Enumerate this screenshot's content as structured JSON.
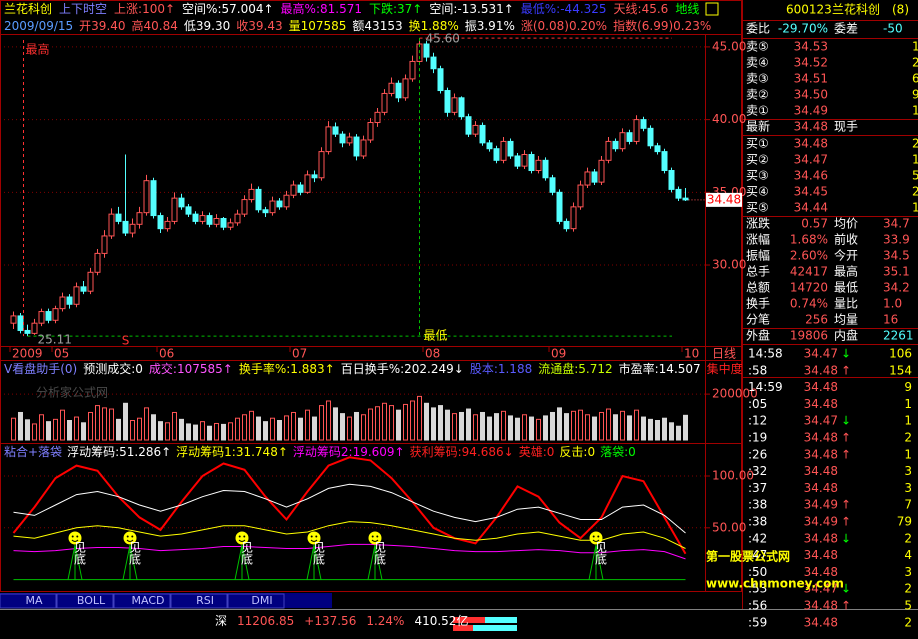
{
  "header": {
    "row1": [
      {
        "text": "兰花科创",
        "color": "#ffff00"
      },
      {
        "text": "上下时空",
        "color": "#7f7fff"
      },
      {
        "text": "上涨:100↑",
        "color": "#ff5555"
      },
      {
        "text": "空间%:57.004↑",
        "color": "#ffffff"
      },
      {
        "text": "最高%:81.571",
        "color": "#ff00ff"
      },
      {
        "text": "下跌:37↑",
        "color": "#00ff00"
      },
      {
        "text": "空间:-13.531↑",
        "color": "#ffffff"
      },
      {
        "text": "最低%:-44.325",
        "color": "#3a3aff"
      },
      {
        "text": "天线:45.6",
        "color": "#ff5555"
      },
      {
        "text": "地线",
        "color": "#00ff00"
      }
    ],
    "row2": [
      {
        "text": "2009/09/15",
        "color": "#5a9cff"
      },
      {
        "text": "开39.40",
        "color": "#ff5555"
      },
      {
        "text": "高40.84",
        "color": "#ff5555"
      },
      {
        "text": "低39.30",
        "color": "#ffffff"
      },
      {
        "text": "收39.43",
        "color": "#ff5555"
      },
      {
        "text": "量107585",
        "color": "#ffff00"
      },
      {
        "text": "额43153",
        "color": "#ffffff"
      },
      {
        "text": "换1.88%",
        "color": "#ffff00"
      },
      {
        "text": "振3.91%",
        "color": "#ffffff"
      },
      {
        "text": "涨(0.08)0.20%",
        "color": "#ff5555"
      },
      {
        "text": "指数(6.99)0.23%",
        "color": "#ff5555"
      }
    ]
  },
  "price_chart": {
    "type": "candlestick",
    "up_color": "#ff5555",
    "down_color": "#54ffff",
    "ylim": [
      24.5,
      45.75
    ],
    "yticks": [
      {
        "value": 45,
        "label": "45.00"
      },
      {
        "value": 40,
        "label": "40.00"
      },
      {
        "value": 35,
        "label": "35.00"
      },
      {
        "value": 30,
        "label": "30.00"
      }
    ],
    "grid": true,
    "period": "日线",
    "high_label": "最高",
    "low_label": "最低",
    "signal_label": "S",
    "high": {
      "value": 45.6,
      "label": "45.60"
    },
    "low": {
      "value": 25.11,
      "label": "25.11"
    },
    "last": {
      "value": 34.48,
      "label": "34.48"
    },
    "categories": [
      "2009",
      null,
      null,
      null,
      null,
      null,
      "05",
      null,
      null,
      null,
      null,
      null,
      null,
      null,
      null,
      null,
      null,
      null,
      null,
      null,
      null,
      "06",
      null,
      null,
      null,
      null,
      null,
      null,
      null,
      null,
      null,
      null,
      null,
      null,
      null,
      null,
      null,
      null,
      null,
      null,
      "07",
      null,
      null,
      null,
      null,
      null,
      null,
      null,
      null,
      null,
      null,
      null,
      null,
      null,
      null,
      null,
      null,
      null,
      null,
      "08",
      null,
      null,
      null,
      null,
      null,
      null,
      null,
      null,
      null,
      null,
      null,
      null,
      null,
      null,
      null,
      null,
      null,
      "09",
      null,
      null,
      null,
      null,
      null,
      null,
      null,
      null,
      null,
      null,
      null,
      null,
      null,
      null,
      null,
      null,
      null,
      null,
      "10"
    ],
    "candles": [
      [
        26.0,
        26.8,
        25.6,
        26.5
      ],
      [
        26.5,
        26.7,
        25.3,
        25.5
      ],
      [
        25.5,
        25.9,
        25.11,
        25.3
      ],
      [
        25.3,
        26.3,
        25.2,
        26.0
      ],
      [
        26.0,
        27.0,
        25.8,
        26.8
      ],
      [
        26.8,
        27.0,
        26.0,
        26.2
      ],
      [
        26.2,
        27.2,
        26.0,
        27.0
      ],
      [
        27.0,
        28.1,
        26.8,
        27.8
      ],
      [
        27.8,
        28.0,
        27.0,
        27.3
      ],
      [
        27.3,
        28.8,
        27.1,
        28.5
      ],
      [
        28.5,
        28.9,
        28.0,
        28.2
      ],
      [
        28.2,
        29.8,
        28.0,
        29.5
      ],
      [
        29.5,
        31.1,
        29.3,
        30.8
      ],
      [
        30.8,
        32.4,
        30.5,
        32.0
      ],
      [
        32.0,
        33.9,
        31.8,
        33.5
      ],
      [
        33.5,
        34.0,
        32.8,
        33.0
      ],
      [
        33.0,
        37.6,
        32.0,
        32.2
      ],
      [
        32.2,
        33.2,
        31.9,
        32.8
      ],
      [
        32.8,
        34.0,
        32.5,
        33.6
      ],
      [
        33.6,
        36.2,
        33.4,
        35.8
      ],
      [
        35.8,
        36.0,
        33.2,
        33.4
      ],
      [
        33.4,
        33.6,
        32.2,
        32.5
      ],
      [
        32.5,
        33.3,
        32.3,
        33.0
      ],
      [
        33.0,
        35.0,
        32.8,
        34.6
      ],
      [
        34.6,
        34.9,
        33.8,
        34.0
      ],
      [
        34.0,
        34.2,
        33.3,
        33.5
      ],
      [
        33.5,
        33.7,
        32.8,
        33.0
      ],
      [
        33.0,
        33.7,
        32.8,
        33.4
      ],
      [
        33.4,
        33.6,
        32.6,
        32.8
      ],
      [
        32.8,
        33.5,
        32.6,
        33.2
      ],
      [
        33.2,
        33.3,
        32.4,
        32.6
      ],
      [
        32.6,
        33.2,
        32.4,
        32.9
      ],
      [
        32.9,
        33.8,
        32.7,
        33.5
      ],
      [
        33.5,
        34.8,
        33.3,
        34.5
      ],
      [
        34.5,
        35.6,
        34.3,
        35.2
      ],
      [
        35.2,
        35.4,
        33.6,
        33.8
      ],
      [
        33.8,
        34.0,
        33.3,
        33.6
      ],
      [
        33.6,
        34.7,
        33.4,
        34.4
      ],
      [
        34.4,
        34.6,
        33.8,
        34.0
      ],
      [
        34.0,
        35.1,
        33.8,
        34.8
      ],
      [
        34.8,
        35.8,
        34.6,
        35.5
      ],
      [
        35.5,
        35.7,
        34.8,
        35.0
      ],
      [
        35.0,
        36.5,
        34.9,
        36.2
      ],
      [
        36.2,
        36.5,
        35.7,
        36.0
      ],
      [
        36.0,
        38.1,
        35.8,
        37.8
      ],
      [
        37.8,
        39.9,
        37.6,
        39.5
      ],
      [
        39.5,
        39.8,
        38.8,
        39.0
      ],
      [
        39.0,
        39.2,
        38.1,
        38.4
      ],
      [
        38.4,
        39.1,
        38.2,
        38.8
      ],
      [
        38.8,
        39.0,
        37.2,
        37.5
      ],
      [
        37.5,
        38.9,
        37.3,
        38.6
      ],
      [
        38.6,
        40.1,
        38.4,
        39.8
      ],
      [
        39.8,
        40.8,
        39.5,
        40.5
      ],
      [
        40.5,
        42.1,
        40.3,
        41.8
      ],
      [
        41.8,
        42.9,
        41.6,
        42.5
      ],
      [
        42.5,
        42.7,
        41.2,
        41.5
      ],
      [
        41.5,
        43.1,
        41.3,
        42.8
      ],
      [
        42.8,
        44.4,
        42.6,
        44.0
      ],
      [
        44.0,
        45.6,
        43.8,
        45.2
      ],
      [
        45.2,
        45.4,
        44.0,
        44.3
      ],
      [
        44.3,
        44.6,
        43.2,
        43.5
      ],
      [
        43.5,
        43.7,
        41.8,
        42.0
      ],
      [
        42.0,
        42.2,
        40.2,
        40.5
      ],
      [
        40.5,
        41.8,
        40.3,
        41.5
      ],
      [
        41.5,
        41.6,
        40.0,
        40.2
      ],
      [
        40.2,
        40.4,
        38.8,
        39.0
      ],
      [
        39.0,
        39.9,
        38.8,
        39.6
      ],
      [
        39.6,
        39.8,
        38.2,
        38.4
      ],
      [
        38.4,
        38.6,
        37.8,
        38.0
      ],
      [
        38.0,
        38.2,
        37.0,
        37.2
      ],
      [
        37.2,
        38.8,
        37.0,
        38.5
      ],
      [
        38.5,
        38.7,
        37.3,
        37.5
      ],
      [
        37.5,
        37.7,
        36.6,
        36.8
      ],
      [
        36.8,
        37.9,
        36.6,
        37.6
      ],
      [
        37.6,
        37.8,
        36.3,
        36.5
      ],
      [
        36.5,
        37.5,
        36.3,
        37.2
      ],
      [
        37.2,
        37.4,
        35.8,
        36.0
      ],
      [
        36.0,
        36.2,
        34.8,
        35.0
      ],
      [
        35.0,
        35.2,
        32.8,
        33.0
      ],
      [
        33.0,
        33.2,
        32.3,
        32.5
      ],
      [
        32.5,
        34.3,
        32.3,
        34.0
      ],
      [
        34.0,
        35.8,
        33.8,
        35.5
      ],
      [
        35.5,
        36.7,
        35.3,
        36.4
      ],
      [
        36.4,
        36.6,
        35.5,
        35.7
      ],
      [
        35.7,
        37.5,
        35.5,
        37.2
      ],
      [
        37.2,
        38.8,
        37.0,
        38.5
      ],
      [
        38.5,
        38.7,
        37.8,
        38.0
      ],
      [
        38.0,
        39.4,
        37.8,
        39.1
      ],
      [
        39.1,
        39.3,
        38.3,
        38.5
      ],
      [
        38.5,
        40.3,
        38.3,
        40.0
      ],
      [
        40.0,
        40.2,
        39.2,
        39.4
      ],
      [
        39.4,
        39.6,
        38.0,
        38.2
      ],
      [
        38.2,
        38.4,
        37.6,
        37.8
      ],
      [
        37.8,
        38.0,
        36.3,
        36.5
      ],
      [
        36.5,
        36.7,
        35.0,
        35.2
      ],
      [
        35.2,
        35.4,
        34.4,
        34.6
      ],
      [
        34.6,
        35.3,
        34.4,
        34.48
      ]
    ]
  },
  "volume_chart": {
    "type": "bar",
    "header": [
      {
        "text": "V看盘助手(0)",
        "color": "#7f7fff"
      },
      {
        "text": "预测成交:0",
        "color": "#ffffff"
      },
      {
        "text": "成交:107585↑",
        "color": "#ff55ff"
      },
      {
        "text": "换手率%:1.883↑",
        "color": "#ffff00"
      },
      {
        "text": "百日换手%:202.249↓",
        "color": "#ffffff"
      },
      {
        "text": "股本:1.188",
        "color": "#5a5aff"
      },
      {
        "text": "流通盘:5.712",
        "color": "#c8ff00"
      },
      {
        "text": "市盈率:14.507",
        "color": "#ffffff"
      },
      {
        "text": "集中度",
        "color": "#ff2020"
      }
    ],
    "watermark": "分析家公式网",
    "ylim": [
      0,
      340000
    ],
    "yticks": [
      200000
    ],
    "values": [
      95000,
      120000,
      88000,
      70000,
      110000,
      80000,
      90000,
      130000,
      85000,
      100000,
      75000,
      120000,
      150000,
      140000,
      135000,
      90000,
      160000,
      85000,
      95000,
      140000,
      110000,
      80000,
      75000,
      120000,
      90000,
      70000,
      65000,
      80000,
      60000,
      72000,
      68000,
      75000,
      95000,
      110000,
      125000,
      100000,
      80000,
      95000,
      85000,
      105000,
      120000,
      95000,
      130000,
      100000,
      150000,
      170000,
      140000,
      115000,
      100000,
      120000,
      110000,
      135000,
      145000,
      160000,
      150000,
      130000,
      155000,
      170000,
      190000,
      160000,
      140000,
      150000,
      130000,
      115000,
      120000,
      135000,
      110000,
      120000,
      100000,
      115000,
      125000,
      105000,
      95000,
      110000,
      100000,
      90000,
      105000,
      120000,
      140000,
      115000,
      125000,
      130000,
      110000,
      100000,
      120000,
      135000,
      110000,
      125000,
      105000,
      130000,
      100000,
      90000,
      85000,
      95000,
      75000,
      60000,
      107585
    ]
  },
  "indicator_chart": {
    "type": "line",
    "header": [
      {
        "text": "粘合+落袋",
        "color": "#7f7fff"
      },
      {
        "text": "浮动筹码:51.286↑",
        "color": "#ffffff"
      },
      {
        "text": "浮动筹码1:31.748↑",
        "color": "#ffff00"
      },
      {
        "text": "浮动筹码2:19.609↑",
        "color": "#ff00ff"
      },
      {
        "text": "获利筹码:94.686↓",
        "color": "#ff2020"
      },
      {
        "text": "英雄:0",
        "color": "#ff2020"
      },
      {
        "text": "反击:0",
        "color": "#ffff00"
      },
      {
        "text": "落袋:0",
        "color": "#00ff00"
      }
    ],
    "signal_label": "见底",
    "ylim": [
      -10,
      127
    ],
    "yticks": [
      {
        "value": 100,
        "label": "100.00"
      },
      {
        "value": 50,
        "label": "50.00"
      }
    ],
    "series": [
      {
        "color": "#ff0000",
        "values": [
          45,
          70,
          98,
          110,
          105,
          80,
          60,
          48,
          75,
          100,
          112,
          106,
          80,
          58,
          85,
          110,
          118,
          115,
          98,
          75,
          50,
          40,
          35,
          60,
          90,
          80,
          55,
          40,
          60,
          100,
          95,
          60,
          25
        ]
      },
      {
        "color": "#ffffff",
        "values": [
          65,
          62,
          72,
          82,
          85,
          80,
          72,
          66,
          72,
          80,
          86,
          85,
          78,
          70,
          78,
          88,
          92,
          90,
          84,
          75,
          66,
          60,
          56,
          60,
          68,
          70,
          64,
          58,
          58,
          70,
          72,
          62,
          45
        ]
      },
      {
        "color": "#ffff00",
        "values": [
          42,
          40,
          45,
          50,
          52,
          50,
          46,
          42,
          44,
          48,
          52,
          52,
          48,
          44,
          46,
          52,
          56,
          55,
          52,
          48,
          44,
          40,
          38,
          40,
          44,
          46,
          42,
          38,
          38,
          44,
          46,
          40,
          30
        ]
      },
      {
        "color": "#ff00ff",
        "values": [
          28,
          27,
          28,
          30,
          31,
          31,
          30,
          28,
          29,
          30,
          32,
          32,
          31,
          30,
          30,
          32,
          34,
          34,
          33,
          32,
          30,
          28,
          27,
          27,
          28,
          29,
          28,
          26,
          26,
          28,
          29,
          27,
          20
        ]
      },
      {
        "color": "#00c000",
        "values": [
          0,
          0,
          0,
          0,
          0,
          0,
          0,
          0,
          0,
          0,
          0,
          0,
          0,
          0,
          0,
          0,
          0,
          0,
          0,
          0,
          0,
          0,
          0,
          0,
          0,
          0,
          0,
          0,
          0,
          0,
          0,
          0,
          0
        ]
      }
    ]
  },
  "tabs": [
    "MA",
    "BOLL",
    "MACD",
    "RSI",
    "DMI"
  ],
  "index_bar": [
    {
      "text": "深",
      "color": "#ffffff"
    },
    {
      "text": "11206.85",
      "color": "#ff5555"
    },
    {
      "text": "+137.56",
      "color": "#ff5555"
    },
    {
      "text": "1.24%",
      "color": "#ff5555"
    },
    {
      "text": "410.52亿",
      "color": "#ffffff"
    }
  ],
  "quote": {
    "code": "600123",
    "name": "兰花科创",
    "tag": "(8)",
    "ratio": [
      "委比",
      "-29.70%",
      "委差",
      "-50"
    ],
    "asks": [
      [
        "卖⑤",
        "34.53",
        "1"
      ],
      [
        "卖④",
        "34.52",
        "2"
      ],
      [
        "卖③",
        "34.51",
        "6"
      ],
      [
        "卖②",
        "34.50",
        "9"
      ],
      [
        "卖①",
        "34.49",
        "1"
      ]
    ],
    "latest": [
      "最新",
      "34.48",
      "现手"
    ],
    "bids": [
      [
        "买①",
        "34.48",
        "2"
      ],
      [
        "买②",
        "34.47",
        "1"
      ],
      [
        "买③",
        "34.46",
        "5"
      ],
      [
        "买④",
        "34.45",
        "2"
      ],
      [
        "买⑤",
        "34.44",
        "1"
      ]
    ],
    "stats": [
      [
        "涨跌",
        "0.57",
        "均价",
        "34.7"
      ],
      [
        "涨幅",
        "1.68%",
        "前收",
        "33.9"
      ],
      [
        "振幅",
        "2.60%",
        "今开",
        "34.5"
      ],
      [
        "总手",
        "42417",
        "最高",
        "35.1"
      ],
      [
        "总额",
        "14720",
        "最低",
        "34.2"
      ],
      [
        "换手",
        "0.74%",
        "量比",
        "1.0"
      ],
      [
        "分笔",
        "256",
        "均量",
        "16"
      ]
    ],
    "outer": [
      "外盘",
      "19806",
      "内盘",
      "2261"
    ],
    "ticks": [
      {
        "time": "14:58",
        "price": "34.47",
        "dir": "↓",
        "vol": "106"
      },
      {
        "time": ":58",
        "price": "34.48",
        "dir": "↑",
        "vol": "154"
      },
      {
        "time": "14:59",
        "price": "34.48",
        "vol": "9"
      },
      {
        "time": ":05",
        "price": "34.48",
        "vol": "1"
      },
      {
        "time": ":12",
        "price": "34.47",
        "dir": "↓",
        "vol": "1"
      },
      {
        "time": ":19",
        "price": "34.48",
        "dir": "↑",
        "vol": "2"
      },
      {
        "time": ":26",
        "price": "34.48",
        "dir": "↑",
        "vol": "1"
      },
      {
        "time": ":32",
        "price": "34.48",
        "vol": "3"
      },
      {
        "time": ":37",
        "price": "34.48",
        "vol": "3"
      },
      {
        "time": ":38",
        "price": "34.49",
        "dir": "↑",
        "vol": "7"
      },
      {
        "time": ":38",
        "price": "34.49",
        "dir": "↑",
        "vol": "79"
      },
      {
        "time": ":42",
        "price": "34.48",
        "dir": "↓",
        "vol": "2"
      },
      {
        "time": ":47",
        "price": "34.48",
        "vol": "4"
      },
      {
        "time": ":50",
        "price": "34.48",
        "vol": "3"
      },
      {
        "time": ":53",
        "price": "34.47",
        "dir": "↓",
        "vol": "2"
      },
      {
        "time": ":56",
        "price": "34.48",
        "dir": "↑",
        "vol": "5"
      },
      {
        "time": ":59",
        "price": "34.48",
        "vol": "2"
      }
    ]
  },
  "watermark": {
    "title": "第一股票公式网",
    "url": "www.chnmoney.com"
  }
}
